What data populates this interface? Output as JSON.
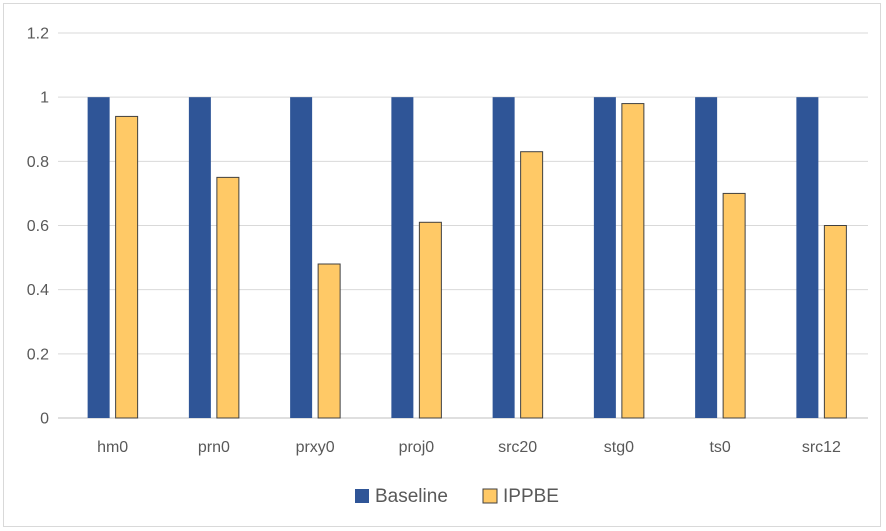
{
  "chart_data": {
    "type": "bar",
    "title": "",
    "xlabel": "",
    "ylabel": "",
    "categories": [
      "hm0",
      "prn0",
      "prxy0",
      "proj0",
      "src20",
      "stg0",
      "ts0",
      "src12"
    ],
    "series": [
      {
        "name": "Baseline",
        "values": [
          1,
          1,
          1,
          1,
          1,
          1,
          1,
          1
        ],
        "color": "#2f5597"
      },
      {
        "name": "IPPBE",
        "values": [
          0.94,
          0.75,
          0.48,
          0.61,
          0.83,
          0.98,
          0.7,
          0.6
        ],
        "color": "#ffc966"
      }
    ],
    "ylim": [
      0,
      1.2
    ],
    "yticks": [
      "0",
      "0.2",
      "0.4",
      "0.6",
      "0.8",
      "1",
      "1.2"
    ],
    "ytick_values": [
      0,
      0.2,
      0.4,
      0.6,
      0.8,
      1,
      1.2
    ],
    "grid": true,
    "legend_position": "bottom"
  }
}
